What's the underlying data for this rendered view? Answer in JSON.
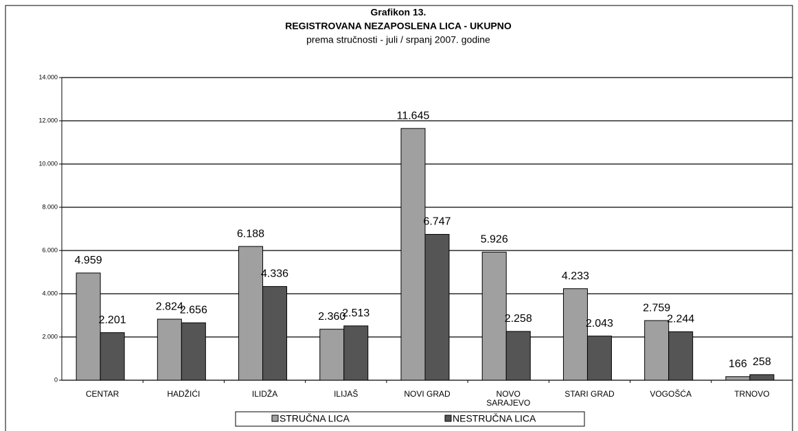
{
  "chart_data": {
    "type": "bar",
    "title": "Grafikon 13.",
    "subtitle": "REGISTROVANA NEZAPOSLENA LICA - UKUPNO",
    "subtitle2": "prema stručnosti -  juli / srpanj 2007. godine",
    "categories": [
      "CENTAR",
      "HADŽIĆI",
      "ILIDŽA",
      "ILIJAŠ",
      "NOVI GRAD",
      "NOVO SARAJEVO",
      "STARI GRAD",
      "VOGOŠĆA",
      "TRNOVO"
    ],
    "series": [
      {
        "name": "STRUČNA LICA",
        "color": "#a0a0a0",
        "values": [
          4959,
          2824,
          6188,
          2360,
          11645,
          5926,
          4233,
          2759,
          166
        ],
        "value_labels": [
          "4.959",
          "2.824",
          "6.188",
          "2.360",
          "11.645",
          "5.926",
          "4.233",
          "2.759",
          "166"
        ]
      },
      {
        "name": "NESTRUČNA LICA",
        "color": "#555555",
        "values": [
          2201,
          2656,
          4336,
          2513,
          6747,
          2258,
          2043,
          2244,
          258
        ],
        "value_labels": [
          "2.201",
          "2.656",
          "4.336",
          "2.513",
          "6.747",
          "2.258",
          "2.043",
          "2.244",
          "258"
        ]
      }
    ],
    "ylim": [
      0,
      14000
    ],
    "yticks": [
      0,
      {
        "value": 2000,
        "label": "2.000"
      },
      {
        "value": 4000,
        "label": "4.000"
      },
      {
        "value": 6000,
        "label": "6.000"
      },
      {
        "value": 8000,
        "label": "8.000"
      },
      {
        "value": 10000,
        "label": "10.000"
      },
      {
        "value": 12000,
        "label": "12.000"
      },
      {
        "value": 14000,
        "label": "14.000"
      }
    ],
    "grid": true
  }
}
